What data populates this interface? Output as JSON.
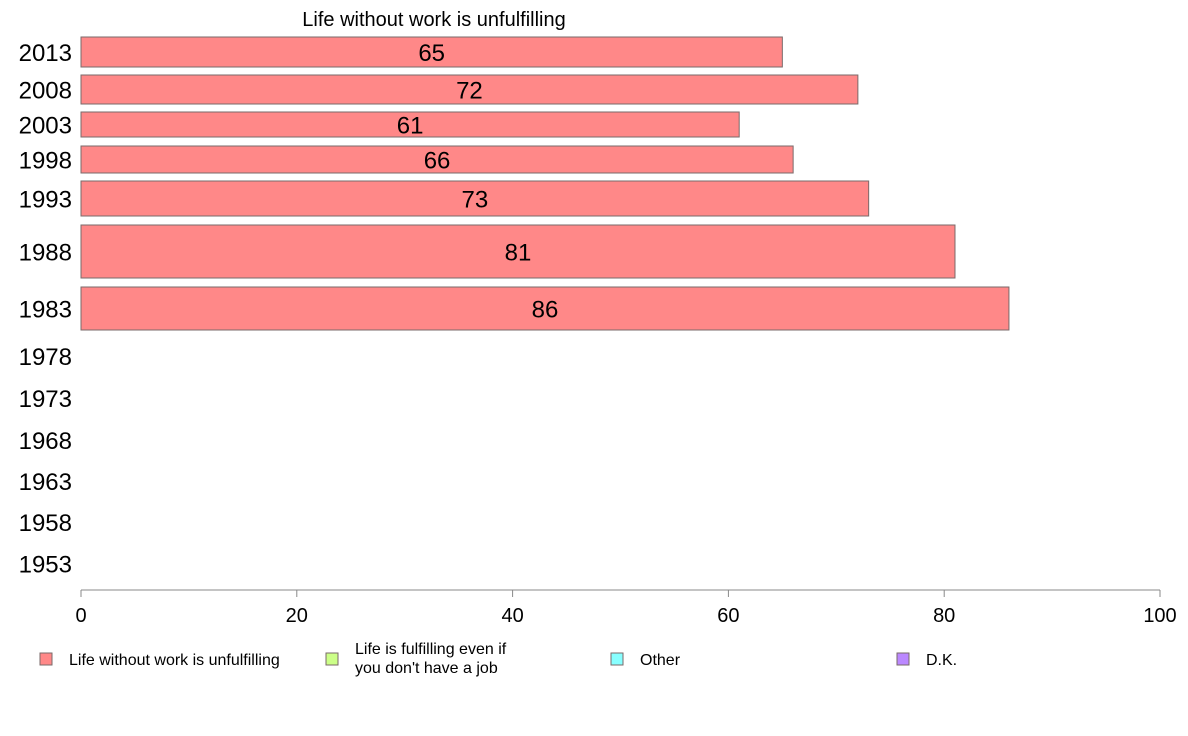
{
  "chart_data": {
    "type": "bar",
    "orientation": "horizontal",
    "title": "Life without work is unfulfilling",
    "xlabel": "",
    "ylabel": "",
    "xlim": [
      0,
      100
    ],
    "x_ticks": [
      0,
      20,
      40,
      60,
      80,
      100
    ],
    "categories": [
      "2013",
      "2008",
      "2003",
      "1998",
      "1993",
      "1988",
      "1983",
      "1978",
      "1973",
      "1968",
      "1963",
      "1958",
      "1953"
    ],
    "series": [
      {
        "name": "Life without work is unfulfilling",
        "color": "#ff8888",
        "values": [
          65,
          72,
          61,
          66,
          73,
          81,
          86,
          null,
          null,
          null,
          null,
          null,
          null
        ]
      }
    ],
    "legend": {
      "placement": "bottom",
      "items": [
        {
          "label_lines": [
            "Life without work is unfulfilling"
          ],
          "color": "#ff8888"
        },
        {
          "label_lines": [
            "Life is fulfilling even if",
            "you don't have a job"
          ],
          "color": "#ccff88"
        },
        {
          "label_lines": [
            "Other"
          ],
          "color": "#88ffff"
        },
        {
          "label_lines": [
            "D.K."
          ],
          "color": "#bb88ff"
        }
      ]
    },
    "grid": false
  }
}
